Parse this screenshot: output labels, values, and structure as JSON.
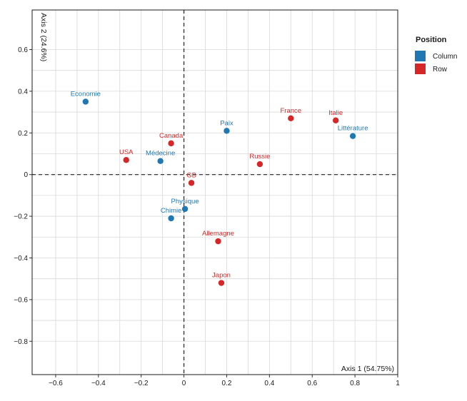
{
  "chart_data": {
    "type": "scatter",
    "title": "",
    "xlabel": "Axis 1 (54.75%)",
    "ylabel": "Axis 2 (24.6%)",
    "xlim": [
      -0.71,
      1.0
    ],
    "ylim": [
      -0.96,
      0.79
    ],
    "xticks": [
      -0.6,
      -0.4,
      -0.2,
      0,
      0.2,
      0.4,
      0.6,
      0.8,
      1
    ],
    "xtick_labels": [
      "−0.6",
      "−0.4",
      "−0.2",
      "0",
      "0.2",
      "0.4",
      "0.6",
      "0.8",
      "1"
    ],
    "yticks": [
      -0.8,
      -0.6,
      -0.4,
      -0.2,
      0,
      0.2,
      0.4,
      0.6
    ],
    "ytick_labels": [
      "−0.8",
      "−0.6",
      "−0.4",
      "−0.2",
      "0",
      "0.2",
      "0.4",
      "0.6"
    ],
    "grid": true,
    "legend": {
      "title": "Position",
      "placement": "right",
      "entries": [
        {
          "name": "Column",
          "color": "#1f77b4"
        },
        {
          "name": "Row",
          "color": "#d62728"
        }
      ]
    },
    "series": [
      {
        "name": "Column",
        "color": "#1f77b4",
        "points": [
          {
            "label": "Economie",
            "x": -0.46,
            "y": 0.35
          },
          {
            "label": "Médecine",
            "x": -0.11,
            "y": 0.065
          },
          {
            "label": "Paix",
            "x": 0.2,
            "y": 0.21
          },
          {
            "label": "Littérature",
            "x": 0.79,
            "y": 0.185
          },
          {
            "label": "Physique",
            "x": 0.005,
            "y": -0.165
          },
          {
            "label": "Chimie",
            "x": -0.06,
            "y": -0.21
          }
        ]
      },
      {
        "name": "Row",
        "color": "#d62728",
        "points": [
          {
            "label": "USA",
            "x": -0.27,
            "y": 0.07
          },
          {
            "label": "Canada",
            "x": -0.06,
            "y": 0.15
          },
          {
            "label": "GB",
            "x": 0.035,
            "y": -0.04
          },
          {
            "label": "France",
            "x": 0.5,
            "y": 0.27
          },
          {
            "label": "Italie",
            "x": 0.71,
            "y": 0.26
          },
          {
            "label": "Russie",
            "x": 0.355,
            "y": 0.05
          },
          {
            "label": "Allemagne",
            "x": 0.16,
            "y": -0.32
          },
          {
            "label": "Japon",
            "x": 0.175,
            "y": -0.52
          }
        ]
      }
    ]
  }
}
